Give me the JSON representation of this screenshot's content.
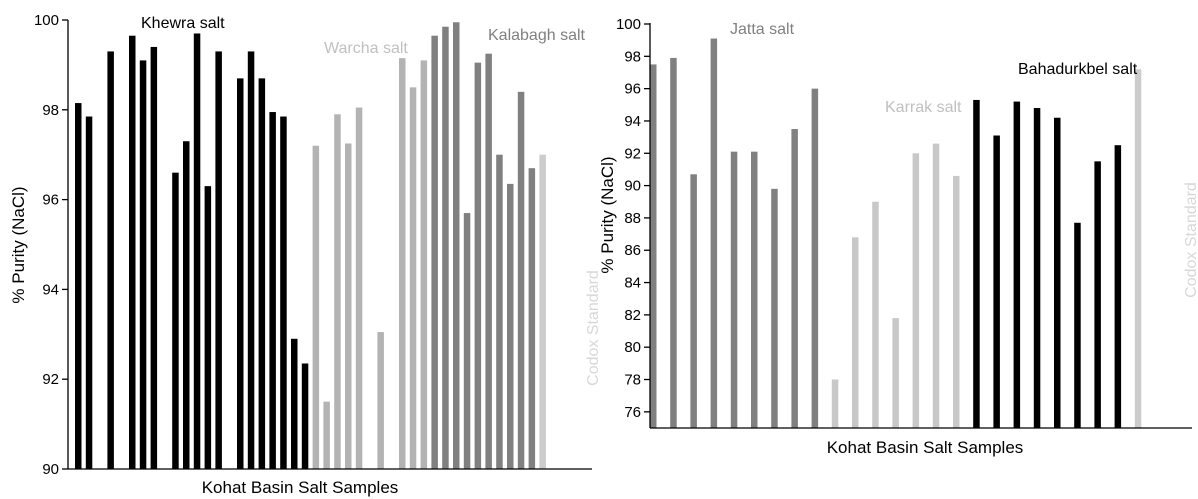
{
  "chart_data": [
    {
      "type": "bar",
      "xlabel": "Kohat Basin Salt Samples",
      "ylabel": "% Purity (NaCl)",
      "ylim": [
        90,
        100
      ],
      "yticks": [
        90,
        92,
        94,
        96,
        98,
        100
      ],
      "grid": false,
      "groups": [
        {
          "name": "Khewra salt",
          "color": "#000000",
          "values": [
            98.15,
            97.85,
            null,
            99.3,
            null,
            99.65,
            99.1,
            99.4,
            null,
            96.6,
            97.3,
            99.7,
            96.3,
            99.3,
            null,
            98.7,
            99.3,
            98.7,
            97.95,
            97.85,
            92.9,
            92.35
          ]
        },
        {
          "name": "Warcha salt",
          "color": "#b3b3b3",
          "values": [
            97.2,
            91.5,
            97.9,
            97.25,
            98.05,
            null,
            93.05,
            null,
            99.15,
            98.5,
            99.1
          ]
        },
        {
          "name": "Kalabagh salt",
          "color": "#808080",
          "values": [
            99.65,
            99.85,
            99.95,
            95.7,
            99.05,
            99.25,
            97.0,
            96.35,
            98.4,
            96.7
          ]
        },
        {
          "name": "Codox Standard",
          "color": "#cccccc",
          "values": [
            97.0
          ]
        }
      ]
    },
    {
      "type": "bar",
      "xlabel": "Kohat Basin Salt Samples",
      "ylabel": "% Purity (NaCl)",
      "ylim": [
        75,
        100
      ],
      "yticks": [
        76,
        78,
        80,
        82,
        84,
        86,
        88,
        90,
        92,
        94,
        96,
        98,
        100
      ],
      "grid": false,
      "groups": [
        {
          "name": "Jatta salt",
          "color": "#808080",
          "values": [
            97.5,
            97.9,
            90.7,
            99.1,
            92.1,
            92.1,
            89.8,
            93.5,
            96.0
          ]
        },
        {
          "name": "Karrak salt",
          "color": "#c8c8c8",
          "values": [
            78.0,
            86.8,
            89.0,
            81.8,
            92.0,
            92.6,
            90.6
          ]
        },
        {
          "name": "Bahadurkbel salt",
          "color": "#000000",
          "values": [
            95.3,
            93.1,
            95.2,
            94.8,
            94.2,
            87.7,
            91.5,
            92.5
          ]
        },
        {
          "name": "Codox Standard",
          "color": "#cccccc",
          "values": [
            97.2
          ]
        }
      ]
    }
  ]
}
